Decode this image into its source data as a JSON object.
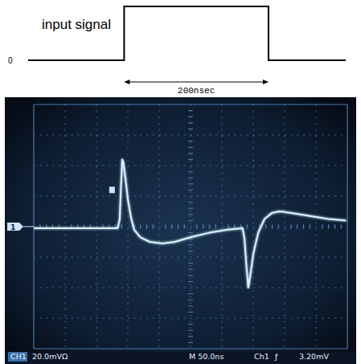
{
  "chart_data": {
    "type": "line",
    "x": [
      0,
      50,
      100,
      134,
      137,
      139,
      141,
      143,
      146,
      150,
      155,
      160,
      170,
      185,
      205,
      225,
      250,
      280,
      310,
      333,
      336,
      339,
      342,
      345,
      350,
      358,
      368,
      380,
      392,
      410,
      440,
      470,
      498
    ],
    "values": [
      -1,
      -1,
      -1,
      -1,
      5,
      25,
      44,
      42,
      32,
      18,
      6,
      -2,
      -7,
      -10,
      -11,
      -10,
      -7,
      -4,
      -2,
      -1,
      -8,
      -25,
      -40,
      -33,
      -18,
      -4,
      5,
      9,
      10,
      9,
      7,
      5,
      4
    ],
    "color": "#d8f4ff",
    "xlim": [
      0,
      500
    ],
    "xticks": [
      0,
      50,
      100,
      150,
      200,
      250,
      300,
      350,
      400,
      450,
      500
    ],
    "ylim": [
      -80,
      80
    ],
    "yticks": [
      -80,
      -60,
      -40,
      -20,
      0,
      20,
      40,
      60,
      80
    ],
    "grid": true,
    "tick_labels": false,
    "annotations": [
      "1",
      "CH1",
      "20.0mVΩ",
      "M 50.0ns",
      "Ch1",
      "ƒ",
      "3.20mV"
    ]
  },
  "input_signal": {
    "label": "input signal",
    "baseline_label": "0",
    "width_label": "200nsec",
    "rise": 133,
    "width": 200,
    "xlim": [
      0,
      440
    ]
  }
}
